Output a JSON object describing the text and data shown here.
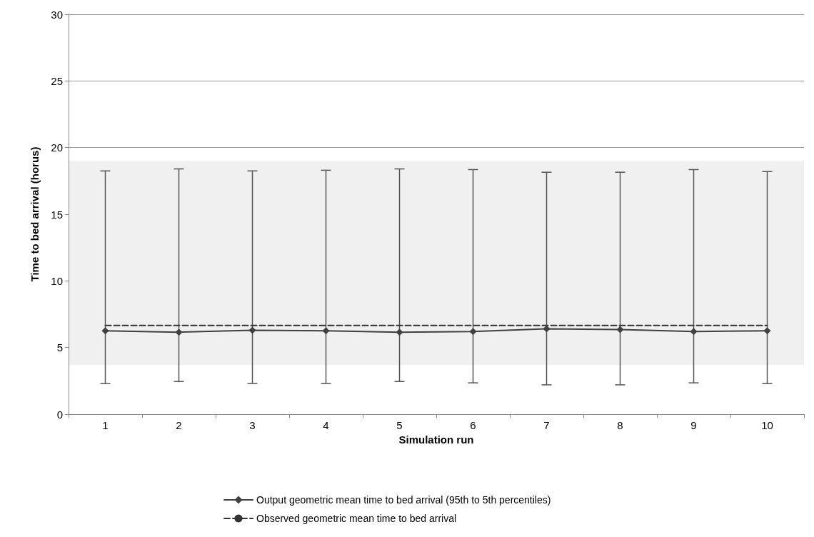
{
  "chart_data": {
    "type": "line",
    "xlabel": "Simulation run",
    "ylabel": "Time to bed arrival (horus)",
    "categories": [
      "1",
      "2",
      "3",
      "4",
      "5",
      "6",
      "7",
      "8",
      "9",
      "10"
    ],
    "series": [
      {
        "name": "Output geometric mean time to bed arrival (95th to 5th percentiles)",
        "color": "#404040",
        "marker": "diamond",
        "line_style": "solid",
        "values": [
          6.25,
          6.15,
          6.3,
          6.25,
          6.15,
          6.2,
          6.4,
          6.35,
          6.2,
          6.25
        ],
        "errors": [
          [
            2.3,
            18.25
          ],
          [
            2.45,
            18.4
          ],
          [
            2.3,
            18.25
          ],
          [
            2.3,
            18.3
          ],
          [
            2.45,
            18.4
          ],
          [
            2.35,
            18.35
          ],
          [
            2.2,
            18.15
          ],
          [
            2.2,
            18.15
          ],
          [
            2.35,
            18.35
          ],
          [
            2.3,
            18.2
          ]
        ]
      },
      {
        "name": "Observed geometric mean time to bed arrival",
        "color": "#333333",
        "marker": "none",
        "line_style": "dashed",
        "values": [
          6.65,
          6.65,
          6.65,
          6.65,
          6.65,
          6.65,
          6.65,
          6.65,
          6.65,
          6.65
        ]
      }
    ],
    "bands": [
      {
        "axis": "y",
        "from": 3.7,
        "to": 19,
        "color": "#f0f0f0"
      }
    ],
    "ylim": [
      0,
      30
    ],
    "yticks": [
      0,
      5,
      10,
      15,
      20,
      25,
      30
    ],
    "grid": "y",
    "legend": "bottom"
  }
}
